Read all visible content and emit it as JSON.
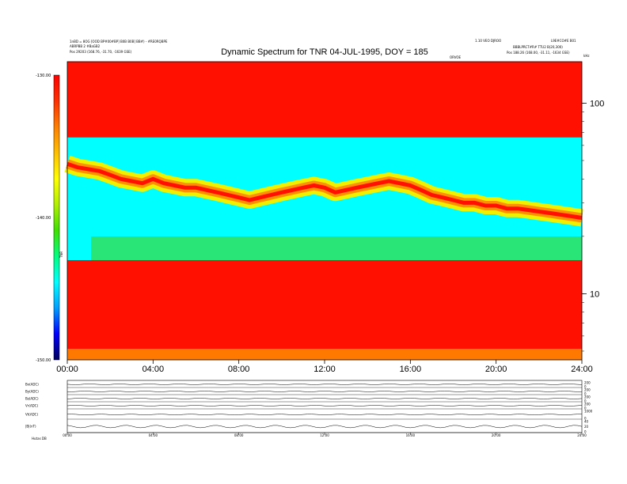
{
  "chart_data": [
    {
      "type": "heatmap",
      "title": "Dynamic Spectrum for TNR 04-JUL-1995, DOY = 185",
      "xlabel": "",
      "ylabel": "kHz",
      "x_ticks": [
        "00:00",
        "04:00",
        "08:00",
        "12:00",
        "16:00",
        "20:00",
        "24:00"
      ],
      "xlim": [
        0,
        24
      ],
      "y_scale": "log",
      "y_ticks": [
        "100",
        "10"
      ],
      "ylim": [
        4.5,
        165
      ],
      "colorbar": {
        "ticks": [
          "-130.00",
          "-140.00",
          "-150.00"
        ],
        "range": [
          -150,
          -130
        ],
        "label": "TNR",
        "colors": [
          "#000060",
          "#0000ff",
          "#00a0ff",
          "#00ffff",
          "#00ff80",
          "#40e000",
          "#b0f000",
          "#ffff00",
          "#ffc000",
          "#ff8000",
          "#ff3000",
          "#ff0000"
        ]
      },
      "band_boundaries_khz": [
        66,
        15
      ],
      "plasma_line": {
        "time_h": [
          0,
          0.5,
          1,
          1.5,
          2,
          2.5,
          3,
          3.5,
          4,
          4.5,
          5,
          5.5,
          6,
          6.5,
          7,
          7.5,
          8,
          8.5,
          9,
          9.5,
          10,
          10.5,
          11,
          11.5,
          12,
          12.5,
          13,
          13.5,
          14,
          14.5,
          15,
          15.5,
          16,
          16.5,
          17,
          17.5,
          18,
          18.5,
          19,
          19.5,
          20,
          20.5,
          21,
          21.5,
          22,
          22.5,
          23,
          23.5,
          24
        ],
        "freq_khz": [
          48,
          46,
          45,
          44,
          42,
          40,
          39,
          38,
          40,
          38,
          37,
          36,
          36,
          35,
          34,
          33,
          32,
          31,
          32,
          33,
          34,
          35,
          36,
          37,
          36,
          34,
          35,
          36,
          37,
          38,
          39,
          38,
          37,
          35,
          33,
          32,
          31,
          30,
          30,
          29,
          29,
          28,
          28,
          27.5,
          27,
          26.5,
          26,
          25.5,
          25
        ]
      }
    },
    {
      "type": "line",
      "title": "",
      "x_ticks": [
        "00:00",
        "04:00",
        "08:00",
        "12:00",
        "16:00",
        "20:00",
        "24:00"
      ],
      "rows": [
        {
          "label": "Bx(ADC)",
          "right_ticks": [
            "200",
            "0"
          ]
        },
        {
          "label": "By(ADC)",
          "right_ticks": [
            "200",
            "0"
          ]
        },
        {
          "label": "Bz(ADC)",
          "right_ticks": [
            "200",
            "0"
          ]
        },
        {
          "label": "Vr(ADC)",
          "right_ticks": [
            "200",
            "0"
          ]
        },
        {
          "label": "Vt(ADC)",
          "right_ticks": [
            "1000",
            "0"
          ]
        },
        {
          "label": "|B|(nT)",
          "right_ticks": [
            "40",
            "20",
            "0"
          ]
        }
      ]
    }
  ],
  "header_left": {
    "line1": "1nBD = 8OG [OOD BP#00#BP] B0B B0B] BB#) - #RE0RQBPE",
    "line2": "ABRPBB 2 #BaGB2",
    "line3": "Pos   29203 (168.76, -31.70, -1639 GSE)"
  },
  "header_right": {
    "line1": "1.10 VEO DJROO",
    "line2": "L9E#CO#E B01",
    "line3": "BBBLPRCT#R#   TTU2 B(20,300)",
    "line4": "Pos   188.26 (168.00, -31.11, -1634 GSE)"
  },
  "mid_label": "ORVOE",
  "footer_left": "Hutas   DB"
}
